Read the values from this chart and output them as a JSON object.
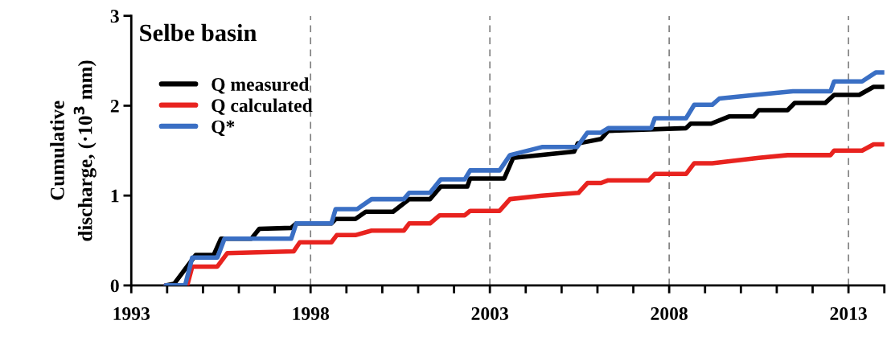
{
  "chart_data": {
    "type": "line",
    "title": "Selbe basin",
    "ylabel": "Cumulative\ndischarge, (·10$^{3}$ mm)",
    "xlim": [
      1993,
      2014
    ],
    "ylim": [
      0,
      3
    ],
    "yticks": [
      0,
      1,
      2,
      3
    ],
    "xticks": [
      1993,
      {
        "value": 1994,
        "label": null
      },
      {
        "value": 1995,
        "label": null
      },
      {
        "value": 1996,
        "label": null
      },
      {
        "value": 1997,
        "label": null
      },
      1998,
      {
        "value": 1999,
        "label": null
      },
      {
        "value": 2000,
        "label": null
      },
      {
        "value": 2001,
        "label": null
      },
      {
        "value": 2002,
        "label": null
      },
      2003,
      {
        "value": 2004,
        "label": null
      },
      {
        "value": 2005,
        "label": null
      },
      {
        "value": 2006,
        "label": null
      },
      {
        "value": 2007,
        "label": null
      },
      2008,
      {
        "value": 2009,
        "label": null
      },
      {
        "value": 2010,
        "label": null
      },
      {
        "value": 2011,
        "label": null
      },
      {
        "value": 2012,
        "label": null
      },
      2013,
      {
        "value": 2014,
        "label": null
      }
    ],
    "grid": false,
    "legend": "top left",
    "marker": "none",
    "line_style": "solid",
    "ref_lines": [
      {
        "axis": "x",
        "value": 1998,
        "label": null,
        "color": "#808080",
        "line_style": "dashed"
      },
      {
        "axis": "x",
        "value": 2003,
        "label": null,
        "color": "#808080",
        "line_style": "dashed"
      },
      {
        "axis": "x",
        "value": 2008,
        "label": null,
        "color": "#808080",
        "line_style": "dashed"
      },
      {
        "axis": "x",
        "value": 2013,
        "label": null,
        "color": "#808080",
        "line_style": "dashed"
      }
    ],
    "series": [
      {
        "name": "Q measured",
        "color": "#000000",
        "x": [
          1993.96,
          1994.2,
          1994.8,
          1995.3,
          1995.5,
          1996.35,
          1996.57,
          1997.46,
          1997.6,
          1998.58,
          1998.7,
          1999.25,
          1999.54,
          2000.3,
          2000.75,
          2001.33,
          2001.63,
          2002.37,
          2002.45,
          2003.4,
          2003.65,
          2005.35,
          2005.45,
          2005.72,
          2006.1,
          2006.3,
          2008.47,
          2008.6,
          2009.17,
          2009.67,
          2010.35,
          2010.5,
          2011.3,
          2011.5,
          2012.35,
          2012.6,
          2013.3,
          2013.7,
          2014
        ],
        "values": [
          0,
          0.02,
          0.34,
          0.34,
          0.52,
          0.52,
          0.63,
          0.64,
          0.69,
          0.69,
          0.74,
          0.74,
          0.82,
          0.82,
          0.96,
          0.96,
          1.1,
          1.1,
          1.19,
          1.19,
          1.42,
          1.49,
          1.58,
          1.6,
          1.63,
          1.72,
          1.75,
          1.8,
          1.8,
          1.88,
          1.88,
          1.95,
          1.95,
          2.03,
          2.03,
          2.12,
          2.12,
          2.21,
          2.21
        ]
      },
      {
        "name": "Q calculated",
        "color": "#e8231f",
        "x": [
          1993.96,
          1994.56,
          1994.7,
          1995.4,
          1995.68,
          1997.53,
          1997.7,
          1998.58,
          1998.73,
          1999.25,
          1999.7,
          2000.6,
          2000.75,
          2001.33,
          2001.6,
          2002.3,
          2002.45,
          2003.27,
          2003.56,
          2004.45,
          2005.47,
          2005.72,
          2006.1,
          2006.3,
          2007.43,
          2007.6,
          2008.47,
          2008.7,
          2009.2,
          2010.5,
          2011.3,
          2012.5,
          2012.6,
          2013.38,
          2013.7,
          2014
        ],
        "values": [
          0,
          0,
          0.21,
          0.21,
          0.36,
          0.38,
          0.48,
          0.48,
          0.56,
          0.56,
          0.61,
          0.61,
          0.69,
          0.69,
          0.78,
          0.78,
          0.83,
          0.83,
          0.96,
          1.0,
          1.03,
          1.14,
          1.14,
          1.17,
          1.17,
          1.24,
          1.24,
          1.36,
          1.36,
          1.42,
          1.45,
          1.45,
          1.5,
          1.5,
          1.57,
          1.57
        ]
      },
      {
        "name": "Q*",
        "color": "#3a6fc4",
        "x": [
          1993.96,
          1994.5,
          1994.7,
          1995.4,
          1995.6,
          1997.46,
          1997.6,
          1998.58,
          1998.7,
          1999.3,
          1999.7,
          2000.6,
          2000.75,
          2001.33,
          2001.63,
          2002.3,
          2002.45,
          2003.27,
          2003.56,
          2004.45,
          2005.43,
          2005.72,
          2006.1,
          2006.3,
          2007.5,
          2007.6,
          2008.47,
          2008.7,
          2009.2,
          2009.4,
          2010.4,
          2011.45,
          2012.5,
          2012.6,
          2013.38,
          2013.76,
          2014
        ],
        "values": [
          0,
          0,
          0.31,
          0.31,
          0.52,
          0.52,
          0.69,
          0.69,
          0.85,
          0.85,
          0.96,
          0.96,
          1.03,
          1.03,
          1.18,
          1.18,
          1.28,
          1.28,
          1.45,
          1.54,
          1.54,
          1.7,
          1.7,
          1.75,
          1.75,
          1.86,
          1.86,
          2.01,
          2.01,
          2.08,
          2.12,
          2.16,
          2.16,
          2.27,
          2.27,
          2.37,
          2.37
        ]
      }
    ]
  }
}
